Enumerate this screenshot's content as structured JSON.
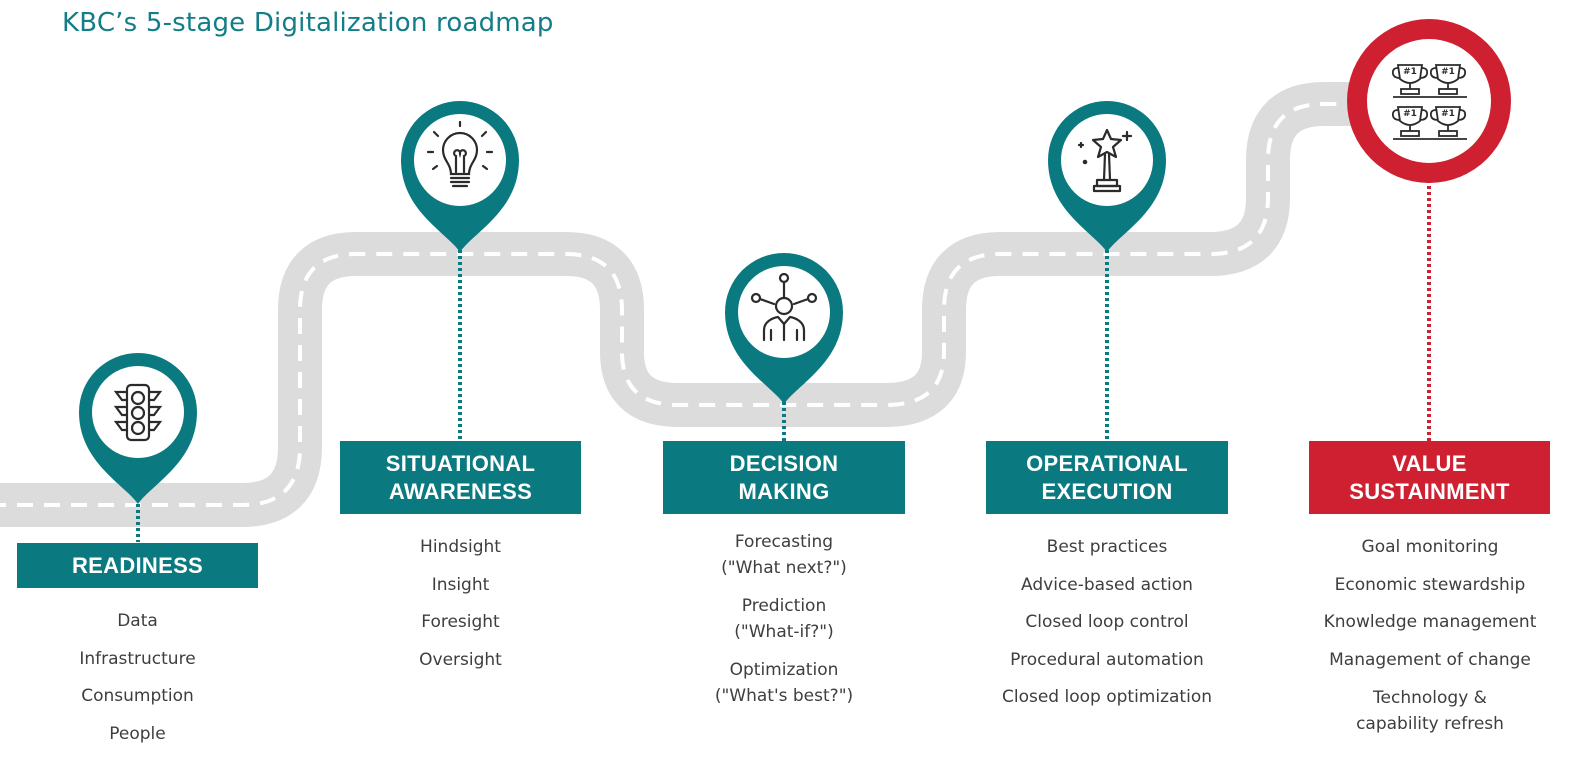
{
  "title": "KBC’s 5-stage Digitalization roadmap",
  "colors": {
    "teal": "#0b7a80",
    "red": "#cf2032",
    "road": "#dcdcdc",
    "text": "#3e3e3e"
  },
  "stages": [
    {
      "line1": "READINESS",
      "line2": "",
      "icon": "traffic-light-icon",
      "items": [
        "Data",
        "Infrastructure",
        "Consumption",
        "People"
      ]
    },
    {
      "line1": "SITUATIONAL",
      "line2": "AWARENESS",
      "icon": "light-bulb-icon",
      "items": [
        "Hindsight",
        "Insight",
        "Foresight",
        "Oversight"
      ]
    },
    {
      "line1": "DECISION",
      "line2": "MAKING",
      "icon": "decision-maker-icon",
      "items": [
        [
          "Forecasting",
          "(\"What next?\")"
        ],
        [
          "Prediction",
          "(\"What-if?\")"
        ],
        [
          "Optimization",
          "(\"What's best?\")"
        ]
      ]
    },
    {
      "line1": "OPERATIONAL",
      "line2": "EXECUTION",
      "icon": "star-award-icon",
      "items": [
        "Best practices",
        "Advice-based action",
        "Closed loop control",
        "Procedural automation",
        "Closed loop optimization"
      ]
    },
    {
      "line1": "VALUE",
      "line2": "SUSTAINMENT",
      "icon": "trophies-icon",
      "items": [
        "Goal monitoring",
        "Economic stewardship",
        "Knowledge management",
        "Management of change",
        [
          "Technology &",
          "capability refresh"
        ]
      ],
      "trophy_labels": [
        "#1",
        "#1",
        "#1",
        "#1"
      ]
    }
  ]
}
